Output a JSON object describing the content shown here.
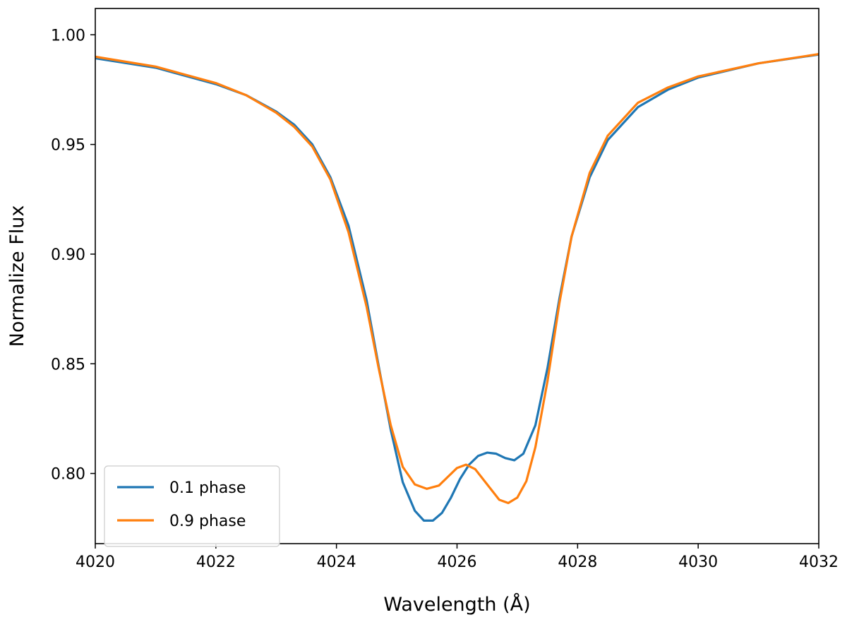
{
  "chart_data": {
    "type": "line",
    "title": "",
    "xlabel": "Wavelength (Å)",
    "ylabel": "Normalize Flux",
    "xlim": [
      4020,
      4032
    ],
    "ylim": [
      0.768,
      1.012
    ],
    "x_ticks": [
      4020,
      4022,
      4024,
      4026,
      4028,
      4030,
      4032
    ],
    "y_ticks": [
      0.8,
      0.85,
      0.9,
      0.95,
      1.0
    ],
    "x_tick_labels": [
      "4020",
      "4022",
      "4024",
      "4026",
      "4028",
      "4030",
      "4032"
    ],
    "y_tick_labels": [
      "0.80",
      "0.85",
      "0.90",
      "0.95",
      "1.00"
    ],
    "grid": false,
    "legend_position": "lower-left",
    "series": [
      {
        "name": "0.1 phase",
        "color": "#1f77b4",
        "points": [
          [
            4020.0,
            0.9893
          ],
          [
            4021.0,
            0.985
          ],
          [
            4022.0,
            0.9775
          ],
          [
            4022.5,
            0.9725
          ],
          [
            4023.0,
            0.965
          ],
          [
            4023.3,
            0.959
          ],
          [
            4023.6,
            0.95
          ],
          [
            4023.9,
            0.935
          ],
          [
            4024.2,
            0.913
          ],
          [
            4024.5,
            0.879
          ],
          [
            4024.7,
            0.849
          ],
          [
            4024.9,
            0.82
          ],
          [
            4025.1,
            0.796
          ],
          [
            4025.3,
            0.783
          ],
          [
            4025.45,
            0.7785
          ],
          [
            4025.6,
            0.7785
          ],
          [
            4025.75,
            0.782
          ],
          [
            4025.9,
            0.789
          ],
          [
            4026.05,
            0.7975
          ],
          [
            4026.2,
            0.804
          ],
          [
            4026.35,
            0.808
          ],
          [
            4026.5,
            0.8095
          ],
          [
            4026.65,
            0.809
          ],
          [
            4026.8,
            0.807
          ],
          [
            4026.95,
            0.806
          ],
          [
            4027.1,
            0.809
          ],
          [
            4027.3,
            0.822
          ],
          [
            4027.5,
            0.848
          ],
          [
            4027.7,
            0.88
          ],
          [
            4027.9,
            0.908
          ],
          [
            4028.2,
            0.935
          ],
          [
            4028.5,
            0.952
          ],
          [
            4029.0,
            0.967
          ],
          [
            4029.5,
            0.975
          ],
          [
            4030.0,
            0.9805
          ],
          [
            4031.0,
            0.987
          ],
          [
            4032.0,
            0.991
          ]
        ]
      },
      {
        "name": "0.9 phase",
        "color": "#ff7f0e",
        "points": [
          [
            4020.0,
            0.99
          ],
          [
            4021.0,
            0.9855
          ],
          [
            4022.0,
            0.978
          ],
          [
            4022.5,
            0.9725
          ],
          [
            4023.0,
            0.9645
          ],
          [
            4023.3,
            0.958
          ],
          [
            4023.6,
            0.949
          ],
          [
            4023.9,
            0.934
          ],
          [
            4024.2,
            0.91
          ],
          [
            4024.5,
            0.876
          ],
          [
            4024.7,
            0.848
          ],
          [
            4024.9,
            0.822
          ],
          [
            4025.1,
            0.803
          ],
          [
            4025.3,
            0.795
          ],
          [
            4025.5,
            0.793
          ],
          [
            4025.7,
            0.7945
          ],
          [
            4025.85,
            0.7985
          ],
          [
            4026.0,
            0.8025
          ],
          [
            4026.15,
            0.804
          ],
          [
            4026.3,
            0.802
          ],
          [
            4026.5,
            0.795
          ],
          [
            4026.7,
            0.788
          ],
          [
            4026.85,
            0.7865
          ],
          [
            4027.0,
            0.789
          ],
          [
            4027.15,
            0.7965
          ],
          [
            4027.3,
            0.812
          ],
          [
            4027.5,
            0.842
          ],
          [
            4027.7,
            0.878
          ],
          [
            4027.9,
            0.908
          ],
          [
            4028.2,
            0.937
          ],
          [
            4028.5,
            0.954
          ],
          [
            4029.0,
            0.969
          ],
          [
            4029.5,
            0.976
          ],
          [
            4030.0,
            0.981
          ],
          [
            4031.0,
            0.987
          ],
          [
            4032.0,
            0.9912
          ]
        ]
      }
    ]
  }
}
